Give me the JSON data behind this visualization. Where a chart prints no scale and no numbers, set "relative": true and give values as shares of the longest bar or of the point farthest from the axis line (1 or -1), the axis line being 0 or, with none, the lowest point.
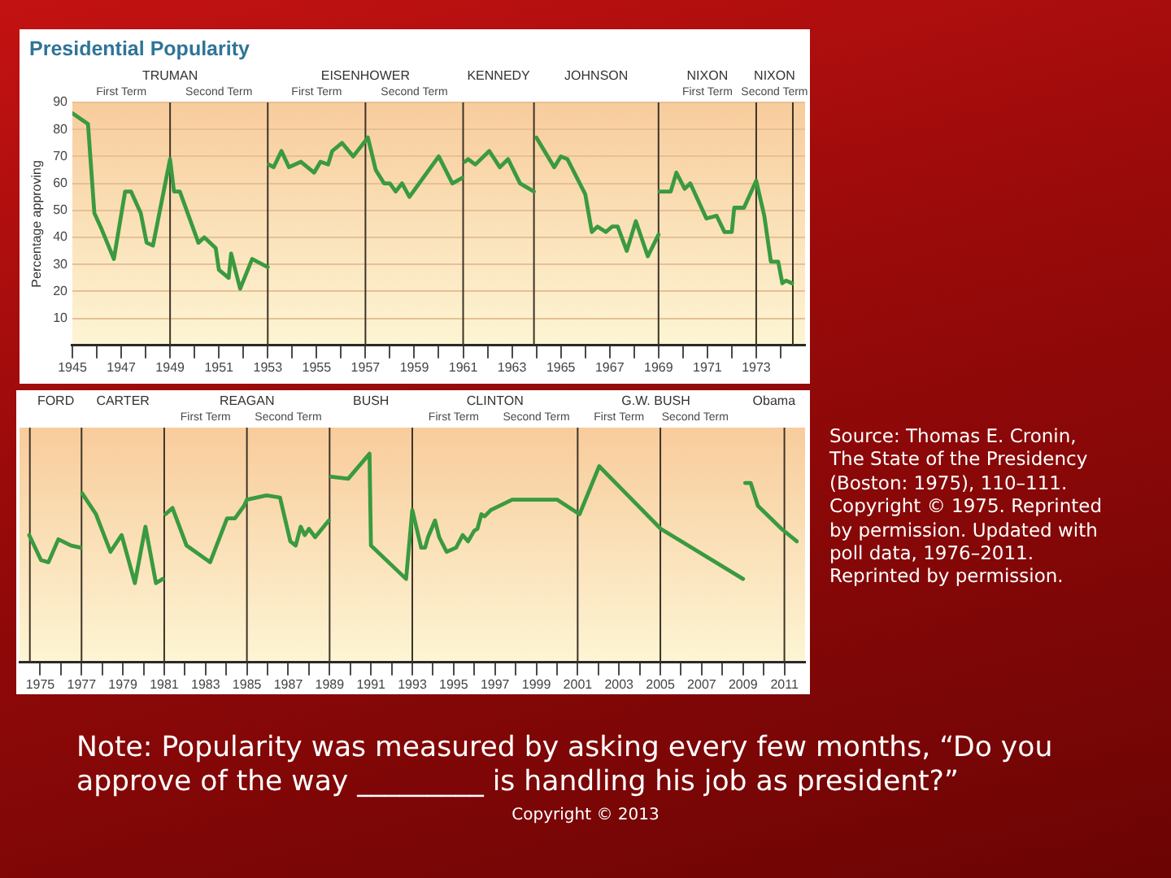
{
  "chart_data": [
    {
      "type": "line",
      "title": "Presidential Popularity",
      "ylabel": "Percentage approving",
      "xlim": [
        1945,
        1975
      ],
      "xticks": [
        1945,
        {
          "value": 1946,
          "label": null
        },
        1947,
        {
          "value": 1948,
          "label": null
        },
        1949,
        {
          "value": 1950,
          "label": null
        },
        1951,
        {
          "value": 1952,
          "label": null
        },
        1953,
        {
          "value": 1954,
          "label": null
        },
        1955,
        {
          "value": 1956,
          "label": null
        },
        1957,
        {
          "value": 1958,
          "label": null
        },
        1959,
        {
          "value": 1960,
          "label": null
        },
        1961,
        {
          "value": 1962,
          "label": null
        },
        1963,
        {
          "value": 1964,
          "label": null
        },
        1965,
        {
          "value": 1966,
          "label": null
        },
        1967,
        {
          "value": 1968,
          "label": null
        },
        1969,
        {
          "value": 1970,
          "label": null
        },
        1971,
        {
          "value": 1972,
          "label": null
        },
        1973,
        {
          "value": 1974,
          "label": null
        }
      ],
      "ylim": [
        0,
        90
      ],
      "yticks": [
        10,
        20,
        30,
        40,
        50,
        60,
        70,
        80,
        90
      ],
      "grid": "y",
      "ref_lines": [
        {
          "axis": "x",
          "value": 1949,
          "color": "#3d3428"
        },
        {
          "axis": "x",
          "value": 1953,
          "color": "#3d3428"
        },
        {
          "axis": "x",
          "value": 1957,
          "color": "#3d3428"
        },
        {
          "axis": "x",
          "value": 1961,
          "color": "#3d3428"
        },
        {
          "axis": "x",
          "value": 1963.9,
          "color": "#3d3428"
        },
        {
          "axis": "x",
          "value": 1969,
          "color": "#3d3428"
        },
        {
          "axis": "x",
          "value": 1973,
          "color": "#3d3428"
        },
        {
          "axis": "x",
          "value": 1974.5,
          "color": "#3d3428"
        }
      ],
      "annotations": [
        "TRUMAN",
        "First Term",
        "Second Term",
        "EISENHOWER",
        "First Term",
        "Second Term",
        "KENNEDY",
        "JOHNSON",
        "NIXON",
        "First Term",
        "NIXON",
        "Second Term"
      ],
      "series": [
        {
          "color": "#3a9a40",
          "x": [
            1945.0,
            1945.64,
            1945.9,
            1946.2,
            1946.7,
            1946.9,
            1947.16,
            1947.4,
            1947.8,
            1948.04,
            1948.3,
            1949.0,
            1949.16,
            1949.4,
            1950.16,
            1950.4,
            1950.87,
            1951.0,
            1951.4,
            1951.5,
            1951.87,
            1952.36,
            1953.0
          ],
          "values": [
            86,
            82,
            49,
            43,
            32,
            43,
            57,
            57,
            49,
            38,
            37,
            69,
            57,
            57,
            38,
            40,
            36,
            28,
            25,
            34,
            21,
            32,
            29
          ]
        },
        {
          "color": "#3a9a40",
          "x": [
            1953.04,
            1953.24,
            1953.56,
            1953.87,
            1954.36,
            1954.9,
            1955.16,
            1955.47,
            1955.64,
            1956.04,
            1956.5,
            1957.1,
            1957.42,
            1957.76,
            1958.0,
            1958.24,
            1958.5,
            1958.8,
            1960.0,
            1960.56,
            1960.96
          ],
          "values": [
            67,
            66,
            72,
            66,
            68,
            64,
            68,
            67,
            72,
            75,
            70,
            77,
            65,
            60,
            60,
            57,
            60,
            55,
            70,
            60,
            62
          ]
        },
        {
          "color": "#3a9a40",
          "x": [
            1961.07,
            1961.2,
            1961.5,
            1962.07,
            1962.5,
            1962.84,
            1963.33,
            1963.9
          ],
          "values": [
            68,
            69,
            67,
            72,
            66,
            69,
            60,
            57
          ]
        },
        {
          "color": "#3a9a40",
          "x": [
            1964.0,
            1964.33,
            1964.73,
            1965.0,
            1965.27,
            1966.0,
            1966.27,
            1966.5,
            1966.84,
            1967.1,
            1967.33,
            1967.7,
            1968.07,
            1968.56,
            1969.0
          ],
          "values": [
            77,
            72,
            66,
            70,
            69,
            56,
            42,
            44,
            42,
            44,
            44,
            35,
            46,
            33,
            41
          ]
        },
        {
          "color": "#3a9a40",
          "x": [
            1969.04,
            1969.5,
            1969.73,
            1970.07,
            1970.3,
            1970.96,
            1971.38,
            1971.7,
            1972.0,
            1972.1,
            1972.5,
            1973.0,
            1973.33,
            1973.6,
            1973.9,
            1974.07,
            1974.22,
            1974.47
          ],
          "values": [
            57,
            57,
            64,
            58,
            60,
            47,
            48,
            42,
            42,
            51,
            51,
            61,
            48,
            31,
            31,
            23,
            24,
            23
          ]
        }
      ]
    },
    {
      "type": "line",
      "relative": true,
      "xlim": [
        1974,
        2012
      ],
      "xticks": [
        1975,
        {
          "value": 1976,
          "label": null
        },
        1977,
        {
          "value": 1978,
          "label": null
        },
        1979,
        {
          "value": 1980,
          "label": null
        },
        1981,
        {
          "value": 1982,
          "label": null
        },
        1983,
        {
          "value": 1984,
          "label": null
        },
        1985,
        {
          "value": 1986,
          "label": null
        },
        1987,
        {
          "value": 1988,
          "label": null
        },
        1989,
        {
          "value": 1990,
          "label": null
        },
        1991,
        {
          "value": 1992,
          "label": null
        },
        1993,
        {
          "value": 1994,
          "label": null
        },
        1995,
        {
          "value": 1996,
          "label": null
        },
        1997,
        {
          "value": 1998,
          "label": null
        },
        1999,
        {
          "value": 2000,
          "label": null
        },
        2001,
        {
          "value": 2002,
          "label": null
        },
        2003,
        {
          "value": 2004,
          "label": null
        },
        2005,
        {
          "value": 2006,
          "label": null
        },
        2007,
        {
          "value": 2008,
          "label": null
        },
        2009,
        {
          "value": 2010,
          "label": null
        },
        2011
      ],
      "ref_lines": [
        {
          "axis": "x",
          "value": 1974.5,
          "color": "#3d3428"
        },
        {
          "axis": "x",
          "value": 1977,
          "color": "#3d3428"
        },
        {
          "axis": "x",
          "value": 1981,
          "color": "#3d3428"
        },
        {
          "axis": "x",
          "value": 1985,
          "color": "#3d3428"
        },
        {
          "axis": "x",
          "value": 1989,
          "color": "#3d3428"
        },
        {
          "axis": "x",
          "value": 1993,
          "color": "#3d3428"
        },
        {
          "axis": "x",
          "value": 2001,
          "color": "#3d3428"
        },
        {
          "axis": "x",
          "value": 2005,
          "color": "#3d3428"
        },
        {
          "axis": "x",
          "value": 2011,
          "color": "#3d3428"
        }
      ],
      "annotations": [
        "FORD",
        "CARTER",
        "REAGAN",
        "First Term",
        "Second Term",
        "BUSH",
        "CLINTON",
        "First Term",
        "Second Term",
        "G.W. BUSH",
        "First Term",
        "Second Term",
        "Obama",
        "Source: Thomas E. Cronin, The State of the Presidency (Boston: 1975), 110–111. Copyright © 1975. Reprinted by permission. Updated with poll data, 1976–2011. Reprinted by permission.",
        "Note: Popularity was measured by asking every few months, “Do you approve of the way _________ is handling his job as president?”",
        "Copyright © 2013"
      ],
      "series": [
        {
          "color": "#3a9a40",
          "x": [
            1974.47,
            1975.04,
            1975.4,
            1975.88,
            1976.5,
            1976.95
          ],
          "values": [
            0.61,
            0.49,
            0.48,
            0.59,
            0.56,
            0.55
          ]
        },
        {
          "color": "#3a9a40",
          "x": [
            1977.03,
            1977.7,
            1978.4,
            1978.94,
            1979.58,
            1980.09,
            1980.6,
            1980.93
          ],
          "values": [
            0.81,
            0.71,
            0.53,
            0.61,
            0.38,
            0.65,
            0.38,
            0.4
          ]
        },
        {
          "color": "#3a9a40",
          "x": [
            1981.06,
            1981.4,
            1982.08,
            1983.22,
            1984.04,
            1984.42,
            1984.86,
            1985.0,
            1985.95,
            1986.6,
            1987.1,
            1987.36,
            1987.6,
            1987.8,
            1988.0,
            1988.3,
            1988.96
          ],
          "values": [
            0.71,
            0.74,
            0.56,
            0.48,
            0.69,
            0.69,
            0.75,
            0.78,
            0.8,
            0.79,
            0.58,
            0.56,
            0.65,
            0.61,
            0.64,
            0.6,
            0.68
          ]
        },
        {
          "color": "#3a9a40",
          "x": [
            1989.07,
            1989.9,
            1990.93,
            1991.0,
            1992.7,
            1993.0,
            1993.43,
            1993.62,
            1993.76,
            1994.1,
            1994.3,
            1994.66,
            1995.12,
            1995.44,
            1995.7,
            1995.99,
            1996.15,
            1996.34,
            1996.5,
            1996.8,
            1997.83,
            2000.0,
            2001.09,
            2002.04,
            2005.02,
            2009.0
          ],
          "values": [
            0.89,
            0.88,
            1,
            0.56,
            0.4,
            0.73,
            0.55,
            0.55,
            0.6,
            0.68,
            0.6,
            0.53,
            0.55,
            0.61,
            0.58,
            0.63,
            0.64,
            0.71,
            0.7,
            0.73,
            0.78,
            0.78,
            0.71,
            0.94,
            0.64,
            0.4
          ]
        },
        {
          "color": "#3a9a40",
          "x": [
            2009.1,
            2009.37,
            2009.72,
            2010.86,
            2011.6
          ],
          "values": [
            0.86,
            0.86,
            0.75,
            0.64,
            0.58
          ]
        }
      ]
    }
  ]
}
